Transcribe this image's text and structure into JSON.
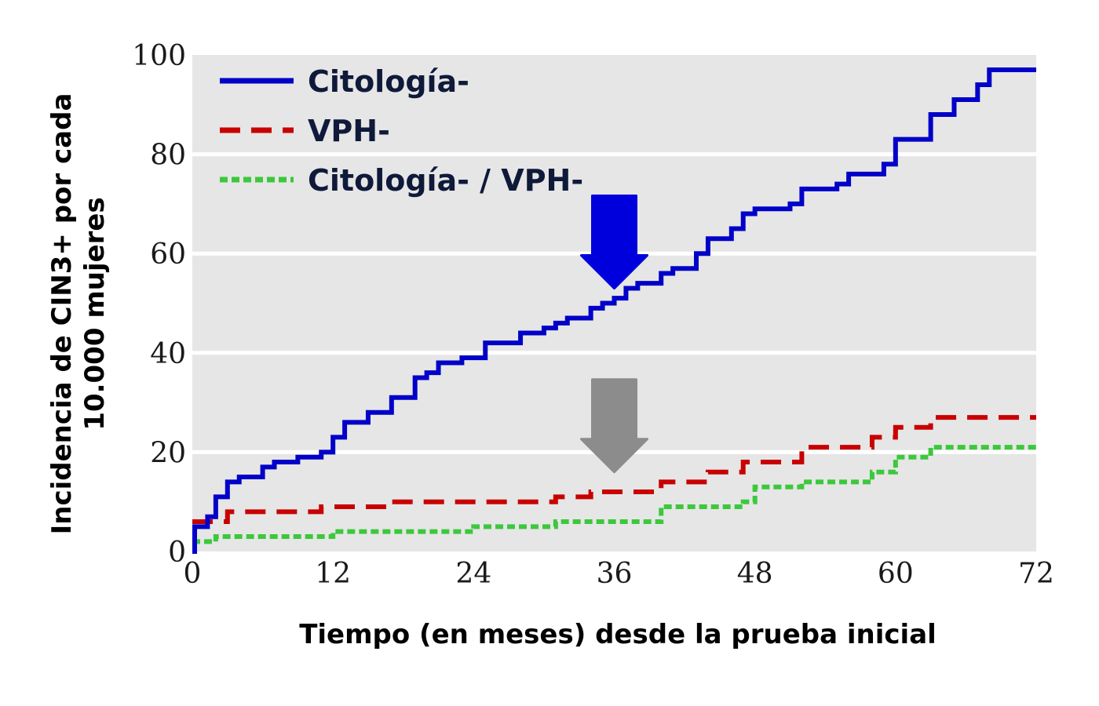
{
  "chart_data": {
    "type": "line",
    "title": "",
    "xlabel": "Tiempo (en meses) desde la prueba inicial",
    "ylabel_lines": [
      "Incidencia de CIN3+ por cada",
      "10.000 mujeres"
    ],
    "xlim": [
      0,
      72
    ],
    "ylim": [
      0,
      100
    ],
    "xticks": [
      0,
      12,
      24,
      36,
      48,
      60,
      72
    ],
    "yticks": [
      0,
      20,
      40,
      60,
      80,
      100
    ],
    "grid": true,
    "legend_position": "top-left",
    "step": true,
    "series": [
      {
        "name": "Citología-",
        "color": "#0000c8",
        "style": "solid",
        "x": [
          0,
          0.2,
          1.3,
          2.0,
          3.0,
          4.0,
          6.0,
          7.0,
          9.0,
          11.0,
          12.0,
          13.0,
          15.0,
          17.0,
          19.0,
          20.0,
          21.0,
          23.0,
          25.0,
          28.0,
          30.0,
          31.0,
          32.0,
          34.0,
          35.0,
          36.0,
          37.0,
          38.0,
          40.0,
          41.0,
          43.0,
          44.0,
          46.0,
          47.0,
          48.0,
          51.0,
          52.0,
          55.0,
          56.0,
          59.0,
          60.0,
          63.0,
          65.0,
          67.0,
          68.0,
          72.0
        ],
        "y": [
          0,
          5,
          7,
          11,
          14,
          15,
          17,
          18,
          19,
          20,
          23,
          26,
          28,
          31,
          35,
          36,
          38,
          39,
          42,
          44,
          45,
          46,
          47,
          49,
          50,
          51,
          53,
          54,
          56,
          57,
          60,
          63,
          65,
          68,
          69,
          70,
          73,
          74,
          76,
          78,
          83,
          88,
          91,
          94,
          97,
          97
        ]
      },
      {
        "name": "VPH-",
        "color": "#c80000",
        "style": "dashed",
        "x": [
          0,
          3.0,
          11.0,
          17.0,
          24.0,
          31.0,
          34.0,
          40.0,
          44.0,
          47.0,
          52.0,
          58.0,
          60.0,
          63.0,
          72.0
        ],
        "y": [
          6,
          8,
          9,
          10,
          10,
          11,
          12,
          14,
          16,
          18,
          21,
          23,
          25,
          27,
          27
        ]
      },
      {
        "name": "Citología- / VPH-",
        "color": "#3cc83c",
        "style": "dotted",
        "x": [
          0,
          2.0,
          12.0,
          24.0,
          31.0,
          40.0,
          47.0,
          48.0,
          52.0,
          58.0,
          60.0,
          63.0,
          72.0
        ],
        "y": [
          2,
          3,
          4,
          5,
          6,
          9,
          10,
          13,
          14,
          16,
          19,
          21,
          21
        ]
      }
    ],
    "annotations": [
      {
        "type": "arrow",
        "color": "#0000dd",
        "x": 36,
        "y": 53,
        "points": "down"
      },
      {
        "type": "arrow",
        "color": "#8c8c8c",
        "x": 36,
        "y": 16,
        "points": "down"
      }
    ]
  }
}
